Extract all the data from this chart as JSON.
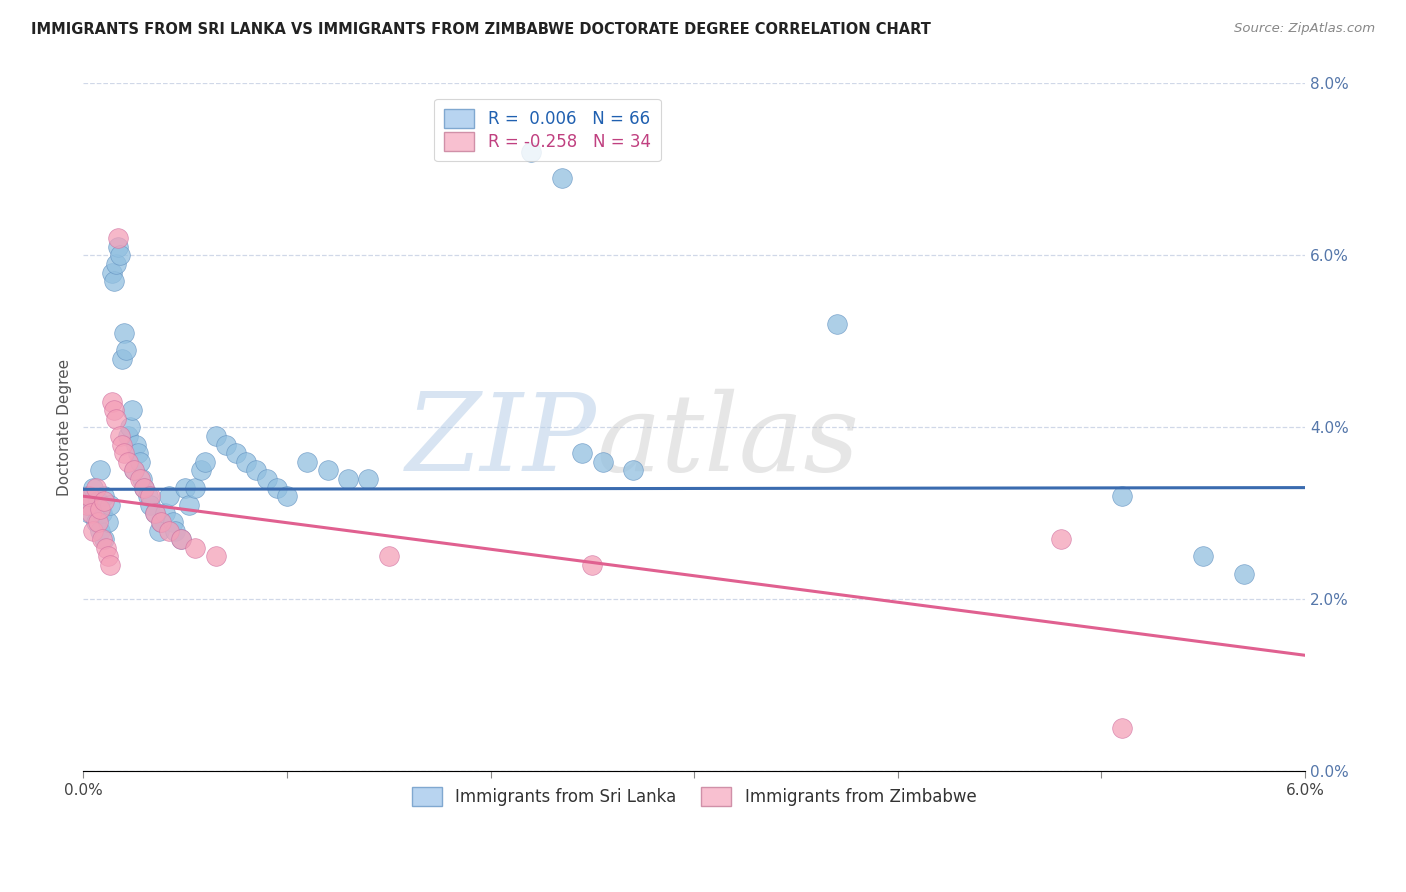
{
  "title": "IMMIGRANTS FROM SRI LANKA VS IMMIGRANTS FROM ZIMBABWE DOCTORATE DEGREE CORRELATION CHART",
  "source": "Source: ZipAtlas.com",
  "ylabel": "Doctorate Degree",
  "ylabel_right_ticks": [
    0.0,
    2.0,
    4.0,
    6.0,
    8.0
  ],
  "xlim": [
    0.0,
    6.0
  ],
  "ylim": [
    0.0,
    8.0
  ],
  "watermark_zip": "ZIP",
  "watermark_atlas": "atlas",
  "sri_lanka_x": [
    0.02,
    0.03,
    0.04,
    0.05,
    0.06,
    0.07,
    0.08,
    0.08,
    0.09,
    0.1,
    0.1,
    0.12,
    0.13,
    0.14,
    0.15,
    0.16,
    0.17,
    0.18,
    0.19,
    0.2,
    0.21,
    0.22,
    0.23,
    0.24,
    0.25,
    0.26,
    0.27,
    0.28,
    0.29,
    0.3,
    0.32,
    0.33,
    0.35,
    0.37,
    0.38,
    0.4,
    0.42,
    0.44,
    0.45,
    0.48,
    0.5,
    0.52,
    0.55,
    0.58,
    0.6,
    0.65,
    0.7,
    0.75,
    0.8,
    0.85,
    0.9,
    0.95,
    1.0,
    1.1,
    1.2,
    1.3,
    1.4,
    2.2,
    2.35,
    2.45,
    2.55,
    2.7,
    3.7,
    5.1,
    5.5,
    5.7
  ],
  "sri_lanka_y": [
    3.2,
    3.0,
    3.1,
    3.3,
    2.9,
    3.15,
    3.5,
    2.8,
    3.0,
    3.2,
    2.7,
    2.9,
    3.1,
    5.8,
    5.7,
    5.9,
    6.1,
    6.0,
    4.8,
    5.1,
    4.9,
    3.9,
    4.0,
    4.2,
    3.5,
    3.8,
    3.7,
    3.6,
    3.4,
    3.3,
    3.2,
    3.1,
    3.0,
    2.8,
    2.9,
    3.0,
    3.2,
    2.9,
    2.8,
    2.7,
    3.3,
    3.1,
    3.3,
    3.5,
    3.6,
    3.9,
    3.8,
    3.7,
    3.6,
    3.5,
    3.4,
    3.3,
    3.2,
    3.6,
    3.5,
    3.4,
    3.4,
    7.2,
    6.9,
    3.7,
    3.6,
    3.5,
    5.2,
    3.2,
    2.5,
    2.3
  ],
  "zimbabwe_x": [
    0.02,
    0.03,
    0.04,
    0.05,
    0.06,
    0.07,
    0.08,
    0.09,
    0.1,
    0.11,
    0.12,
    0.13,
    0.14,
    0.15,
    0.16,
    0.17,
    0.18,
    0.19,
    0.2,
    0.22,
    0.25,
    0.28,
    0.3,
    0.33,
    0.35,
    0.38,
    0.42,
    0.48,
    0.55,
    0.65,
    1.5,
    2.5,
    4.8,
    5.1
  ],
  "zimbabwe_y": [
    3.1,
    3.2,
    3.0,
    2.8,
    3.3,
    2.9,
    3.05,
    2.7,
    3.15,
    2.6,
    2.5,
    2.4,
    4.3,
    4.2,
    4.1,
    6.2,
    3.9,
    3.8,
    3.7,
    3.6,
    3.5,
    3.4,
    3.3,
    3.2,
    3.0,
    2.9,
    2.8,
    2.7,
    2.6,
    2.5,
    2.5,
    2.4,
    2.7,
    0.5
  ],
  "blue_color": "#92c0e0",
  "pink_color": "#f4a0b8",
  "blue_line_color": "#3a6baf",
  "pink_line_color": "#e06090",
  "grid_color": "#d0d8e8",
  "background_color": "#ffffff",
  "blue_regression": [
    3.28,
    3.3
  ],
  "pink_regression": [
    3.2,
    1.35
  ]
}
